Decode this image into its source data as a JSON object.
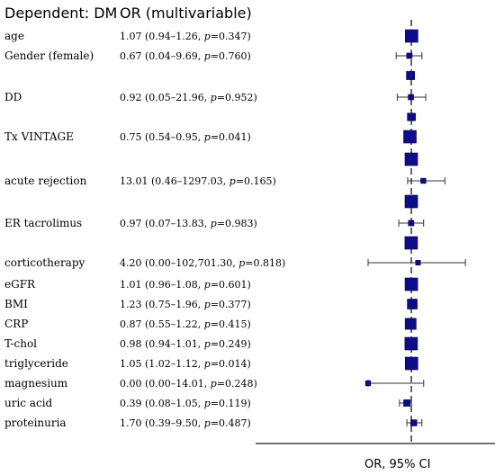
{
  "chart_data": {
    "type": "forest",
    "header_left": "Dependent: DM",
    "header_right": "OR (multivariable)",
    "xlabel": "OR, 95% CI",
    "reference_value": 1,
    "marker_color": "#0d0d8c",
    "rows": [
      {
        "label": "age",
        "text": "1.07 (0.94–1.26, ",
        "p": "0.347",
        "or": 1.07,
        "lo": 0.94,
        "hi": 1.26
      },
      {
        "label": "Gender (female)",
        "text": "0.67 (0.04–9.69, ",
        "p": "0.760",
        "or": 0.67,
        "lo": 0.04,
        "hi": 9.69
      },
      {
        "label": "",
        "text": "",
        "p": "",
        "or": 0.85,
        "lo": 0.45,
        "hi": 1.8
      },
      {
        "label": "DD",
        "text": "0.92 (0.05–21.96, ",
        "p": "0.952",
        "or": 0.92,
        "lo": 0.05,
        "hi": 21.96
      },
      {
        "label": "",
        "text": "",
        "p": "",
        "or": 1.0,
        "lo": 0.45,
        "hi": 2.4
      },
      {
        "label": "Tx VINTAGE",
        "text": "0.75 (0.54–0.95, ",
        "p": "0.041",
        "or": 0.75,
        "lo": 0.54,
        "hi": 0.95
      },
      {
        "label": "",
        "text": "",
        "p": "",
        "or": 1.0,
        "lo": 0.85,
        "hi": 1.15
      },
      {
        "label": "acute rejection",
        "text": "13.01 (0.46–1297.03, ",
        "p": "0.165",
        "or": 13.01,
        "lo": 0.46,
        "hi": 1297.03
      },
      {
        "label": "",
        "text": "",
        "p": "",
        "or": 1.0,
        "lo": 0.88,
        "hi": 1.12
      },
      {
        "label": "ER tacrolimus",
        "text": "0.97 (0.07–13.83, ",
        "p": "0.983",
        "or": 0.97,
        "lo": 0.07,
        "hi": 13.83
      },
      {
        "label": "",
        "text": "",
        "p": "",
        "or": 0.98,
        "lo": 0.95,
        "hi": 1.01
      },
      {
        "label": "corticotherapy",
        "text": "4.20 (0.00–102,701.30, ",
        "p": "0.818",
        "or": 4.2,
        "lo": 0.0,
        "hi": 102701.3
      },
      {
        "label": "eGFR",
        "text": "1.01 (0.96–1.08, ",
        "p": "0.601",
        "or": 1.01,
        "lo": 0.96,
        "hi": 1.08
      },
      {
        "label": "BMI",
        "text": "1.23 (0.75–1.96, ",
        "p": "0.377",
        "or": 1.23,
        "lo": 0.75,
        "hi": 1.96
      },
      {
        "label": "CRP",
        "text": "0.87 (0.55–1.22, ",
        "p": "0.415",
        "or": 0.87,
        "lo": 0.55,
        "hi": 1.22
      },
      {
        "label": "T-chol",
        "text": "0.98 (0.94–1.01, ",
        "p": "0.249",
        "or": 0.98,
        "lo": 0.94,
        "hi": 1.01
      },
      {
        "label": "triglyceride",
        "text": "1.05 (1.02–1.12, ",
        "p": "0.014",
        "or": 1.05,
        "lo": 1.02,
        "hi": 1.12
      },
      {
        "label": "magnesium",
        "text": "0.00 (0.00–14.01, ",
        "p": "0.248",
        "or": 0.0,
        "lo": 0.0,
        "hi": 14.01
      },
      {
        "label": "uric acid",
        "text": "0.39 (0.08–1.05, ",
        "p": "0.119",
        "or": 0.39,
        "lo": 0.08,
        "hi": 1.05
      },
      {
        "label": "proteinuria",
        "text": "1.70 (0.39–9.50, ",
        "p": "0.487",
        "or": 1.7,
        "lo": 0.39,
        "hi": 9.5
      }
    ]
  }
}
